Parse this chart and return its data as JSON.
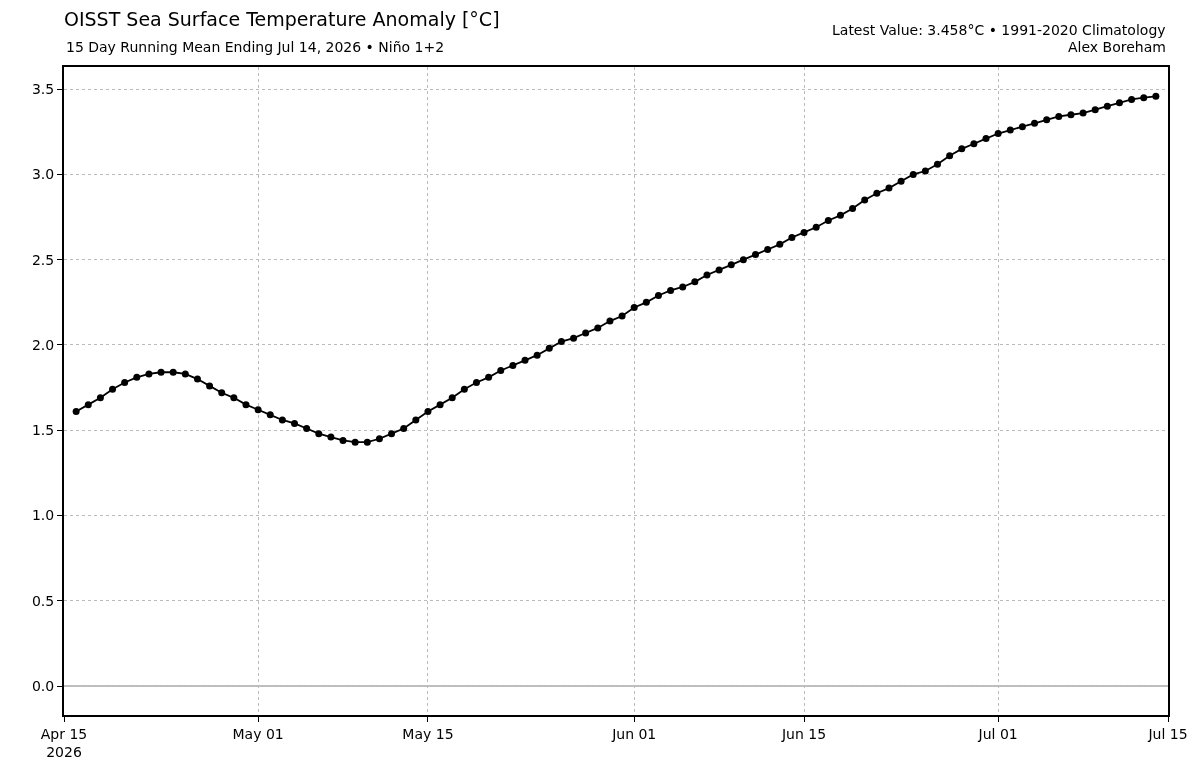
{
  "chart_data": {
    "type": "line",
    "title": "OISST Sea Surface Temperature Anomaly [°C]",
    "subtitle": "15 Day Running Mean Ending Jul 14, 2026 • Niño 1+2",
    "annotations": [
      "Latest Value: 3.458°C • 1991-2020 Climatology",
      "Alex Boreham"
    ],
    "x": [
      "2026-04-16",
      "2026-04-17",
      "2026-04-18",
      "2026-04-19",
      "2026-04-20",
      "2026-04-21",
      "2026-04-22",
      "2026-04-23",
      "2026-04-24",
      "2026-04-25",
      "2026-04-26",
      "2026-04-27",
      "2026-04-28",
      "2026-04-29",
      "2026-04-30",
      "2026-05-01",
      "2026-05-02",
      "2026-05-03",
      "2026-05-04",
      "2026-05-05",
      "2026-05-06",
      "2026-05-07",
      "2026-05-08",
      "2026-05-09",
      "2026-05-10",
      "2026-05-11",
      "2026-05-12",
      "2026-05-13",
      "2026-05-14",
      "2026-05-15",
      "2026-05-16",
      "2026-05-17",
      "2026-05-18",
      "2026-05-19",
      "2026-05-20",
      "2026-05-21",
      "2026-05-22",
      "2026-05-23",
      "2026-05-24",
      "2026-05-25",
      "2026-05-26",
      "2026-05-27",
      "2026-05-28",
      "2026-05-29",
      "2026-05-30",
      "2026-05-31",
      "2026-06-01",
      "2026-06-02",
      "2026-06-03",
      "2026-06-04",
      "2026-06-05",
      "2026-06-06",
      "2026-06-07",
      "2026-06-08",
      "2026-06-09",
      "2026-06-10",
      "2026-06-11",
      "2026-06-12",
      "2026-06-13",
      "2026-06-14",
      "2026-06-15",
      "2026-06-16",
      "2026-06-17",
      "2026-06-18",
      "2026-06-19",
      "2026-06-20",
      "2026-06-21",
      "2026-06-22",
      "2026-06-23",
      "2026-06-24",
      "2026-06-25",
      "2026-06-26",
      "2026-06-27",
      "2026-06-28",
      "2026-06-29",
      "2026-06-30",
      "2026-07-01",
      "2026-07-02",
      "2026-07-03",
      "2026-07-04",
      "2026-07-05",
      "2026-07-06",
      "2026-07-07",
      "2026-07-08",
      "2026-07-09",
      "2026-07-10",
      "2026-07-11",
      "2026-07-12",
      "2026-07-13",
      "2026-07-14"
    ],
    "series": [
      {
        "color": "#000000",
        "values": [
          1.61,
          1.65,
          1.69,
          1.74,
          1.78,
          1.81,
          1.83,
          1.84,
          1.84,
          1.83,
          1.8,
          1.76,
          1.72,
          1.69,
          1.65,
          1.62,
          1.59,
          1.56,
          1.54,
          1.51,
          1.48,
          1.46,
          1.44,
          1.43,
          1.43,
          1.45,
          1.48,
          1.51,
          1.56,
          1.61,
          1.65,
          1.69,
          1.74,
          1.78,
          1.81,
          1.85,
          1.88,
          1.91,
          1.94,
          1.98,
          2.02,
          2.04,
          2.07,
          2.1,
          2.14,
          2.17,
          2.22,
          2.25,
          2.29,
          2.32,
          2.34,
          2.37,
          2.41,
          2.44,
          2.47,
          2.5,
          2.53,
          2.56,
          2.59,
          2.63,
          2.66,
          2.69,
          2.73,
          2.76,
          2.8,
          2.85,
          2.89,
          2.92,
          2.96,
          3.0,
          3.02,
          3.06,
          3.11,
          3.15,
          3.18,
          3.21,
          3.24,
          3.26,
          3.28,
          3.3,
          3.32,
          3.34,
          3.35,
          3.36,
          3.38,
          3.4,
          3.42,
          3.44,
          3.45,
          3.458
        ]
      }
    ],
    "xlim": [
      "2026-04-15",
      "2026-07-15"
    ],
    "xticks": [
      {
        "value": "2026-04-15",
        "label": "Apr 15\n2026"
      },
      {
        "value": "2026-05-01",
        "label": "May 01"
      },
      {
        "value": "2026-05-15",
        "label": "May 15"
      },
      {
        "value": "2026-06-01",
        "label": "Jun 01"
      },
      {
        "value": "2026-06-15",
        "label": "Jun 15"
      },
      {
        "value": "2026-07-01",
        "label": "Jul 01"
      },
      {
        "value": "2026-07-15",
        "label": "Jul 15"
      }
    ],
    "ylim": [
      -0.17,
      3.63
    ],
    "yticks": [
      {
        "value": 0,
        "label": "0.0"
      },
      {
        "value": 0.5,
        "label": "0.5"
      },
      {
        "value": 1,
        "label": "1.0"
      },
      {
        "value": 1.5,
        "label": "1.5"
      },
      {
        "value": 2,
        "label": "2.0"
      },
      {
        "value": 2.5,
        "label": "2.5"
      },
      {
        "value": 3,
        "label": "3.0"
      },
      {
        "value": 3.5,
        "label": "3.5"
      }
    ],
    "ref_lines": [
      {
        "axis": "y",
        "value": 0,
        "color": "#808080"
      }
    ],
    "grid": true,
    "marker": "circle",
    "line_style": "solid"
  }
}
